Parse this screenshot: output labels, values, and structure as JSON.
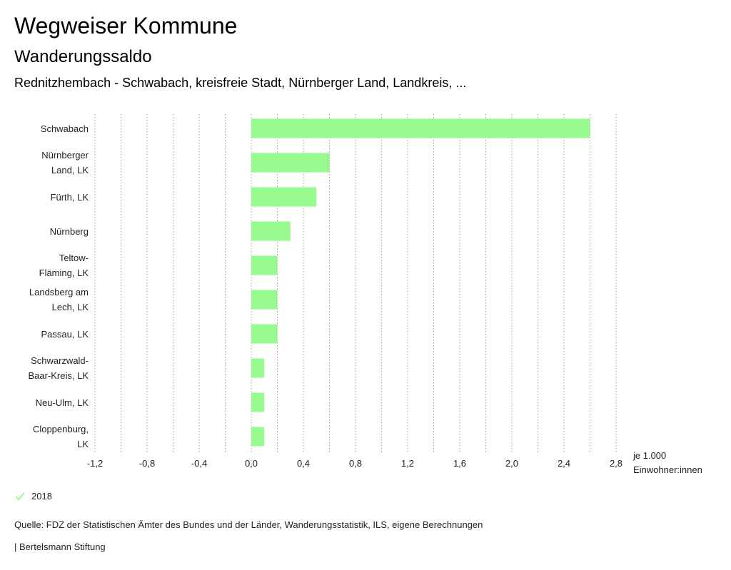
{
  "header": {
    "title": "Wegweiser Kommune",
    "subtitle": "Wanderungssaldo",
    "context": "Rednitzhembach - Schwabach, kreisfreie Stadt, Nürnberger Land, Landkreis, ..."
  },
  "chart_data": {
    "type": "bar",
    "orientation": "horizontal",
    "categories": [
      "Schwabach",
      "Nürnberger Land, LK",
      "Fürth, LK",
      "Nürnberg",
      "Teltow-Fläming, LK",
      "Landsberg am Lech, LK",
      "Passau, LK",
      "Schwarzwald-Baar-Kreis, LK",
      "Neu-Ulm, LK",
      "Cloppenburg, LK"
    ],
    "category_lines": [
      [
        "Schwabach"
      ],
      [
        "Nürnberger",
        "Land, LK"
      ],
      [
        "Fürth, LK"
      ],
      [
        "Nürnberg"
      ],
      [
        "Teltow-",
        "Fläming, LK"
      ],
      [
        "Landsberg am",
        "Lech, LK"
      ],
      [
        "Passau, LK"
      ],
      [
        "Schwarzwald-",
        "Baar-Kreis, LK"
      ],
      [
        "Neu-Ulm, LK"
      ],
      [
        "Cloppenburg,",
        "LK"
      ]
    ],
    "series": [
      {
        "name": "2018",
        "values": [
          2.6,
          0.6,
          0.5,
          0.3,
          0.2,
          0.2,
          0.2,
          0.1,
          0.1,
          0.1
        ]
      }
    ],
    "xlim": [
      -1.2,
      2.8
    ],
    "xticks": [
      -1.2,
      -1.0,
      -0.8,
      -0.6,
      -0.4,
      -0.2,
      0.0,
      0.2,
      0.4,
      0.6,
      0.8,
      1.0,
      1.2,
      1.4,
      1.6,
      1.8,
      2.0,
      2.2,
      2.4,
      2.6,
      2.8
    ],
    "xtick_labels": [
      "-1,2",
      "",
      "-0,8",
      "",
      "-0,4",
      "",
      "0,0",
      "",
      "0,4",
      "",
      "0,8",
      "",
      "1,2",
      "",
      "1,6",
      "",
      "2,0",
      "",
      "2,4",
      "",
      "2,8"
    ],
    "unit_label_lines": [
      "je 1.000",
      "Einwohner:innen"
    ],
    "grid": true,
    "legend": "bottom-left",
    "colors": {
      "bar": "#98f98e",
      "grid": "#9a9a9a",
      "legend_check": "#98f98e"
    }
  },
  "legend": {
    "label": "2018"
  },
  "footer": {
    "source": "Quelle: FDZ der Statistischen Ämter des Bundes und der Länder, Wanderungsstatistik, ILS, eigene Berechnungen",
    "brand": "| Bertelsmann Stiftung"
  }
}
